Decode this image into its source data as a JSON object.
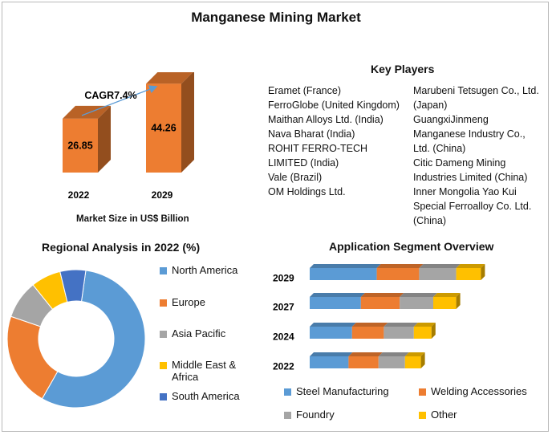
{
  "title": "Manganese Mining Market",
  "market_size": {
    "cagr_label": "CAGR7.4%",
    "caption": "Market Size in US$ Billion"
  },
  "key_players": {
    "title": "Key Players",
    "col1": [
      "Eramet (France)",
      "FerroGlobe (United Kingdom)",
      "Maithan Alloys Ltd. (India)",
      "Nava Bharat (India)",
      "ROHIT FERRO-TECH LIMITED (India)",
      "Vale (Brazil)",
      "OM Holdings Ltd."
    ],
    "col2": [
      "Marubeni Tetsugen Co., Ltd. (Japan)",
      "GuangxiJinmeng Manganese Industry Co., Ltd. (China)",
      "Citic Dameng Mining Industries Limited (China)",
      "Inner Mongolia Yao Kui Special Ferroalloy Co. Ltd. (China)"
    ]
  },
  "regional": {
    "title": "Regional Analysis in 2022 (%)"
  },
  "application": {
    "title": "Application Segment Overview"
  },
  "colors": {
    "orange": "#ed7d31",
    "blue": "#5b9bd5",
    "gray": "#a5a5a5",
    "yellow": "#ffc000",
    "darkblue": "#4472c4",
    "arrow": "#5b9bd5"
  },
  "chart_data": [
    {
      "type": "bar",
      "title": "Market Size",
      "categories": [
        "2022",
        "2029"
      ],
      "values": [
        26.85,
        44.26
      ],
      "value_labels": [
        "26.85",
        "44.26"
      ],
      "xlabel": "Market Size in US$ Billion",
      "ylabel": "",
      "ylim": [
        0,
        50
      ]
    },
    {
      "type": "pie",
      "title": "Regional Analysis in 2022 (%)",
      "labels": [
        "North America",
        "Europe",
        "Asia Pacific",
        "Middle East & Africa",
        "South America"
      ],
      "values": [
        56,
        22,
        9,
        7,
        6
      ],
      "legend": "right"
    },
    {
      "type": "bar",
      "orientation": "horizontal",
      "stacked": true,
      "title": "Application Segment Overview",
      "categories": [
        "2029",
        "2027",
        "2024",
        "2022"
      ],
      "series": [
        {
          "name": "Steel Manufacturing",
          "values": [
            38,
            29,
            24,
            22
          ]
        },
        {
          "name": "Welding Accessories",
          "values": [
            24,
            22,
            18,
            17
          ]
        },
        {
          "name": "Foundry",
          "values": [
            21,
            19,
            17,
            15
          ]
        },
        {
          "name": "Other",
          "values": [
            14,
            13,
            10,
            9
          ]
        }
      ],
      "legend": "bottom"
    }
  ]
}
